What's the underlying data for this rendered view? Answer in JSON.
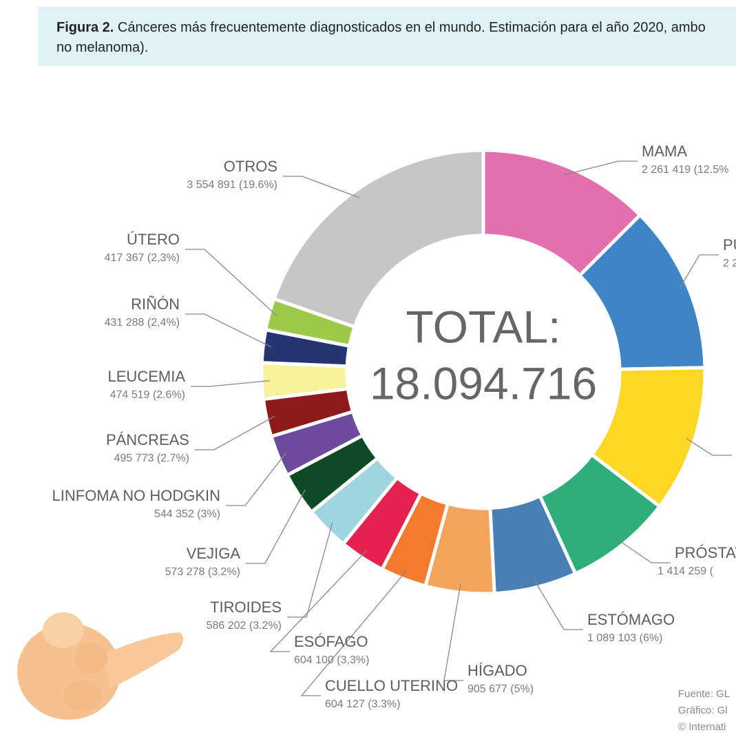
{
  "chart_data": {
    "type": "pie",
    "figure_label": "Figura 2.",
    "title": [
      "Cánceres más frecuentemente diagnosticados en el mundo. Estimación para el año 2020, ambo",
      "no melanoma)."
    ],
    "center_title": "TOTAL:",
    "center_value": "18.094.716",
    "categories": [
      "MAMA",
      "PU",
      null,
      "PRÓSTAT",
      "ESTÓMAGO",
      "HÍGADO",
      "CUELLO UTERINO",
      "ESÓFAGO",
      "TIROIDES",
      "VEJIGA",
      "LINFOMA NO HODGKIN",
      "PÁNCREAS",
      "LEUCEMIA",
      "RIÑÓN",
      "ÚTERO",
      "OTROS"
    ],
    "values": [
      2261419,
      2206771,
      1931590,
      1414259,
      1089103,
      905677,
      604127,
      604100,
      586202,
      573278,
      544352,
      495773,
      474519,
      431288,
      417367,
      3554891
    ],
    "value_labels": [
      "2 261 419 (12.5%",
      "2 2",
      null,
      "1 414 259 (",
      "1 089 103 (6%)",
      "905 677 (5%)",
      "604 127 (3.3%)",
      "604 100 (3,3%)",
      "586 202 (3.2%)",
      "573 278 (3.2%)",
      "544 352 (3%)",
      "495 773 (2.7%)",
      "474 519 (2.6%)",
      "431 288 (2,4%)",
      "417 367 (2,3%)",
      "3 554 891 (19.6%)"
    ],
    "colors": [
      "#e46fae",
      "#3f84c4",
      "#fdd723",
      "#2fad7a",
      "#4a7fb5",
      "#f4a35a",
      "#f47a2c",
      "#e5214f",
      "#9ed5df",
      "#0d4a25",
      "#6d4a9e",
      "#8f1a1c",
      "#f5f29a",
      "#243572",
      "#9cc94a",
      "#c6c6c6"
    ],
    "source": [
      "Fuente: GL",
      "Gráfico: Gl",
      "© Internati"
    ]
  }
}
